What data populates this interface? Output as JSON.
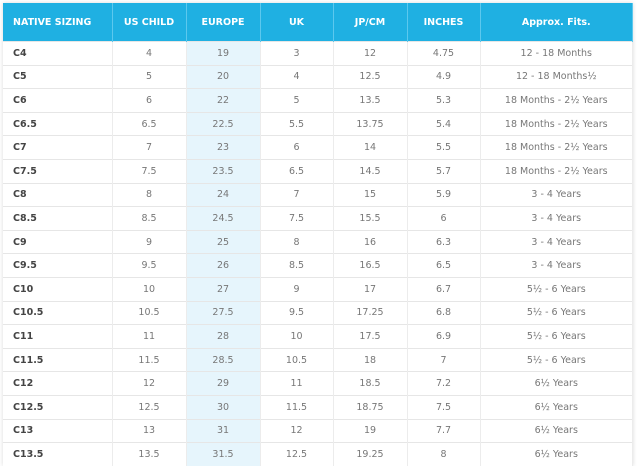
{
  "headers": [
    "NATIVE SIZING",
    "US CHILD",
    "EUROPE",
    "UK",
    "JP/CM",
    "INCHES",
    "Approx. Fits."
  ],
  "rows": [
    [
      "C4",
      "4",
      "19",
      "3",
      "12",
      "4.75",
      "12 - 18 Months"
    ],
    [
      "C5",
      "5",
      "20",
      "4",
      "12.5",
      "4.9",
      "12 - 18 Months½"
    ],
    [
      "C6",
      "6",
      "22",
      "5",
      "13.5",
      "5.3",
      "18 Months - 2½ Years"
    ],
    [
      "C6.5",
      "6.5",
      "22.5",
      "5.5",
      "13.75",
      "5.4",
      "18 Months - 2½ Years"
    ],
    [
      "C7",
      "7",
      "23",
      "6",
      "14",
      "5.5",
      "18 Months - 2½ Years"
    ],
    [
      "C7.5",
      "7.5",
      "23.5",
      "6.5",
      "14.5",
      "5.7",
      "18 Months - 2½ Years"
    ],
    [
      "C8",
      "8",
      "24",
      "7",
      "15",
      "5.9",
      "3 - 4 Years"
    ],
    [
      "C8.5",
      "8.5",
      "24.5",
      "7.5",
      "15.5",
      "6",
      "3 - 4 Years"
    ],
    [
      "C9",
      "9",
      "25",
      "8",
      "16",
      "6.3",
      "3 - 4 Years"
    ],
    [
      "C9.5",
      "9.5",
      "26",
      "8.5",
      "16.5",
      "6.5",
      "3 - 4 Years"
    ],
    [
      "C10",
      "10",
      "27",
      "9",
      "17",
      "6.7",
      "5½ - 6 Years"
    ],
    [
      "C10.5",
      "10.5",
      "27.5",
      "9.5",
      "17.25",
      "6.8",
      "5½ - 6 Years"
    ],
    [
      "C11",
      "11",
      "28",
      "10",
      "17.5",
      "6.9",
      "5½ - 6 Years"
    ],
    [
      "C11.5",
      "11.5",
      "28.5",
      "10.5",
      "18",
      "7",
      "5½ - 6 Years"
    ],
    [
      "C12",
      "12",
      "29",
      "11",
      "18.5",
      "7.2",
      "6½ Years"
    ],
    [
      "C12.5",
      "12.5",
      "30",
      "11.5",
      "18.75",
      "7.5",
      "6½ Years"
    ],
    [
      "C13",
      "13",
      "31",
      "12",
      "19",
      "7.7",
      "6½ Years"
    ],
    [
      "C13.5",
      "13.5",
      "31.5",
      "12.5",
      "19.25",
      "8",
      "6½ Years"
    ]
  ]
}
